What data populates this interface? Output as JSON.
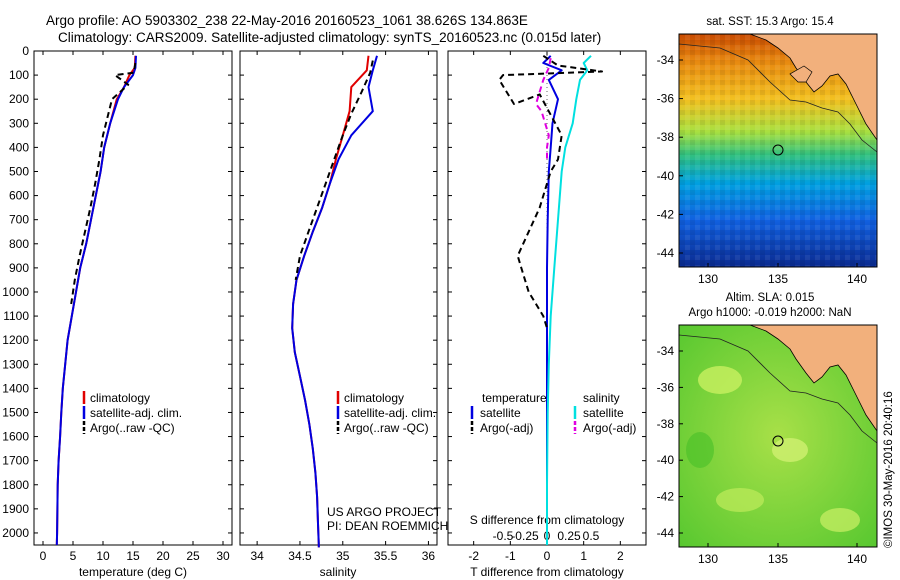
{
  "header": {
    "line1": "Argo profile: AO 5903302_238 22-May-2016 20160523_1061 38.626S 134.863E",
    "line2": "Climatology: CARS2009. Satellite-adjusted climatology: synTS_20160523.nc (0.015d later)"
  },
  "side_stamp": "©IMOS 30-May-2016 20:40:16",
  "credit": {
    "line1": "US ARGO PROJECT",
    "line2": "PI: DEAN ROEMMICH"
  },
  "colors": {
    "clim": "#e00000",
    "sat": "#0000e0",
    "argo": "#000000",
    "sat_s": "#00e0e0",
    "argo_s": "#e000e0"
  },
  "maps": [
    {
      "title": "sat. SST: 15.3 Argo: 15.4",
      "subtitle": "",
      "xticks": [
        "130",
        "135",
        "140"
      ],
      "yticks": [
        "-34",
        "-36",
        "-38",
        "-40",
        "-42",
        "-44"
      ]
    },
    {
      "title": "Altim. SLA: 0.015",
      "subtitle": "Argo h1000: -0.019 h2000: NaN",
      "xticks": [
        "130",
        "135",
        "140"
      ],
      "yticks": [
        "-34",
        "-36",
        "-38",
        "-40",
        "-42",
        "-44"
      ]
    }
  ],
  "chart_data": [
    {
      "type": "line",
      "xlabel": "temperature (deg C)",
      "xlim": [
        -1.5,
        31.5
      ],
      "ylim": [
        2050,
        0
      ],
      "xticks": [
        0,
        5,
        10,
        15,
        20,
        25,
        30
      ],
      "yticks": [
        0,
        100,
        200,
        300,
        400,
        500,
        600,
        700,
        800,
        900,
        1000,
        1100,
        1200,
        1300,
        1400,
        1500,
        1600,
        1700,
        1800,
        1900,
        2000
      ],
      "legend": [
        "climatology",
        "satellite-adj. clim.",
        "Argo(..raw -QC)"
      ],
      "series": [
        {
          "name": "climatology",
          "color": "clim",
          "dash": "",
          "x": [
            15.4,
            15.3,
            14.4,
            13.5,
            12.3,
            11.2,
            10.2,
            9.6,
            8.8,
            8.0,
            7.2,
            6.2,
            5.5,
            4.8,
            4.1,
            3.7,
            3.3,
            3.05,
            2.85,
            2.6,
            2.45,
            2.4,
            2.35,
            2.3
          ],
          "y": [
            20,
            70,
            100,
            150,
            200,
            300,
            400,
            500,
            600,
            700,
            800,
            900,
            1000,
            1100,
            1200,
            1300,
            1400,
            1500,
            1600,
            1700,
            1800,
            1900,
            2000,
            2050
          ]
        },
        {
          "name": "satellite-adj. clim.",
          "color": "sat",
          "dash": "",
          "x": [
            15.5,
            15.4,
            15.0,
            13.5,
            12.5,
            11.2,
            10.2,
            9.6,
            8.8,
            8.0,
            7.2,
            6.2,
            5.5,
            4.8,
            4.1,
            3.7,
            3.3,
            3.05,
            2.85,
            2.6,
            2.45,
            2.4,
            2.35,
            2.3
          ],
          "y": [
            20,
            70,
            100,
            150,
            200,
            300,
            400,
            500,
            600,
            700,
            800,
            900,
            1000,
            1100,
            1200,
            1300,
            1400,
            1500,
            1600,
            1700,
            1800,
            1900,
            2000,
            2050
          ]
        },
        {
          "name": "Argo(..raw -QC)",
          "color": "argo",
          "dash": "6,4",
          "x": [
            15.4,
            15.1,
            12.0,
            14.2,
            11.5,
            10.0,
            9.4,
            8.7,
            7.9,
            7.0,
            6.1,
            5.3,
            4.7
          ],
          "y": [
            50,
            90,
            100,
            140,
            200,
            350,
            450,
            550,
            650,
            750,
            850,
            950,
            1050
          ]
        }
      ]
    },
    {
      "type": "line",
      "xlabel": "salinity",
      "xlim": [
        33.8,
        36.1
      ],
      "ylim": [
        2050,
        0
      ],
      "xticks": [
        34,
        34.5,
        35,
        35.5,
        36
      ],
      "yticks": [
        0,
        100,
        200,
        300,
        400,
        500,
        600,
        700,
        800,
        900,
        1000,
        1100,
        1200,
        1300,
        1400,
        1500,
        1600,
        1700,
        1800,
        1900,
        2000
      ],
      "legend": [
        "climatology",
        "satellite-adj. clim.",
        "Argo(..raw -QC)"
      ],
      "series": [
        {
          "name": "climatology",
          "color": "clim",
          "dash": "",
          "x": [
            35.3,
            35.28,
            35.1,
            35.08,
            35.0,
            34.92,
            34.85,
            34.76,
            34.65,
            34.55,
            34.46,
            34.42,
            34.41,
            34.44,
            34.5,
            34.56,
            34.61,
            34.65,
            34.68,
            34.7,
            34.71,
            34.72,
            34.72
          ],
          "y": [
            20,
            80,
            150,
            250,
            350,
            450,
            550,
            650,
            750,
            850,
            950,
            1050,
            1150,
            1250,
            1350,
            1450,
            1550,
            1650,
            1750,
            1850,
            1950,
            2050,
            2060
          ]
        },
        {
          "name": "satellite-adj. clim.",
          "color": "sat",
          "dash": "",
          "x": [
            35.4,
            35.35,
            35.3,
            35.35,
            35.1,
            34.95,
            34.85,
            34.76,
            34.65,
            34.55,
            34.46,
            34.42,
            34.41,
            34.44,
            34.5,
            34.56,
            34.61,
            34.65,
            34.68,
            34.7,
            34.71,
            34.72,
            34.72
          ],
          "y": [
            20,
            80,
            150,
            250,
            350,
            450,
            550,
            650,
            750,
            850,
            950,
            1050,
            1150,
            1250,
            1350,
            1450,
            1550,
            1650,
            1750,
            1850,
            1950,
            2050,
            2060
          ]
        },
        {
          "name": "Argo(..raw -QC)",
          "color": "argo",
          "dash": "6,4",
          "x": [
            35.35,
            35.32,
            35.22,
            35.1,
            35.0,
            34.9,
            34.8,
            34.7,
            34.6,
            34.5,
            34.45
          ],
          "y": [
            40,
            90,
            170,
            260,
            350,
            450,
            550,
            650,
            750,
            850,
            950
          ]
        }
      ]
    },
    {
      "type": "line",
      "xlabel": "T difference from climatology",
      "x2label": "S difference from climatology",
      "xlim": [
        -2.7,
        2.7
      ],
      "ylim": [
        2050,
        0
      ],
      "xticks": [
        -2,
        -1,
        0,
        1,
        2
      ],
      "x2ticks": [
        "-0.5",
        "-0.25",
        "0",
        "0.25",
        "0.5"
      ],
      "yticks": [
        0,
        100,
        200,
        300,
        400,
        500,
        600,
        700,
        800,
        900,
        1000,
        1100,
        1200,
        1300,
        1400,
        1500,
        1600,
        1700,
        1800,
        1900,
        2000
      ],
      "legend_headers": [
        "temperature",
        "salinity"
      ],
      "legend_t": [
        "satellite",
        "Argo(-adj)"
      ],
      "legend_s": [
        "satellite",
        "Argo(-adj)"
      ],
      "series": [
        {
          "name": "satellite",
          "color": "sat",
          "dash": "",
          "x": [
            0.1,
            -0.1,
            0.4,
            0.05,
            0.3,
            0.15,
            0.1,
            0.05,
            0.02,
            0.0,
            0.0,
            0.0,
            0.0,
            0.0,
            0.0
          ],
          "y": [
            20,
            50,
            80,
            120,
            200,
            300,
            400,
            500,
            700,
            900,
            1100,
            1300,
            1500,
            1800,
            2050
          ]
        },
        {
          "name": "satellite",
          "color": "sat_s",
          "dash": "",
          "x": [
            1.2,
            1.0,
            1.1,
            0.9,
            0.8,
            0.7,
            0.5,
            0.4,
            0.3,
            0.2,
            0.1,
            0.05,
            0.02,
            0.0,
            0.0
          ],
          "y": [
            20,
            50,
            80,
            120,
            200,
            300,
            400,
            500,
            700,
            900,
            1100,
            1300,
            1500,
            1800,
            2050
          ]
        },
        {
          "name": "Argo(-adj)",
          "color": "argo",
          "dash": "6,4",
          "x": [
            -0.1,
            0.3,
            1.5,
            -1.2,
            -1.3,
            -0.9,
            -0.2,
            0.4,
            0.3,
            0.1,
            0.0,
            -0.2,
            -0.5,
            -0.8,
            -0.7,
            -0.6,
            -0.5,
            -0.3,
            -0.1,
            0.0
          ],
          "y": [
            20,
            60,
            85,
            100,
            120,
            220,
            180,
            350,
            450,
            500,
            550,
            650,
            750,
            850,
            900,
            950,
            1000,
            1050,
            1100,
            1150
          ]
        },
        {
          "name": "Argo(-adj)",
          "color": "argo_s",
          "dash": "6,4",
          "x": [
            0.1,
            0.05,
            -0.1,
            -0.3,
            -0.15,
            0.05,
            0.0,
            0.0
          ],
          "y": [
            30,
            70,
            120,
            220,
            250,
            350,
            400,
            450
          ]
        }
      ]
    }
  ]
}
